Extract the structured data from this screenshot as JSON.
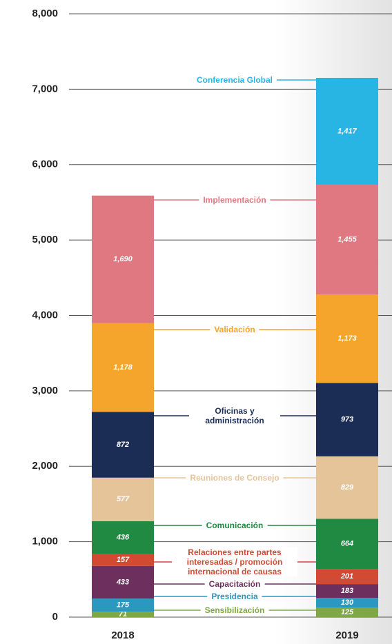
{
  "chart_data": {
    "type": "stacked_bar",
    "categories": [
      "2018",
      "2019"
    ],
    "series": [
      {
        "name": "Sensibilización",
        "color": "#7ea842",
        "values": [
          71,
          125
        ]
      },
      {
        "name": "Presidencia",
        "color": "#2a98c0",
        "values": [
          175,
          130
        ]
      },
      {
        "name": "Capacitación",
        "color": "#6d2f5d",
        "values": [
          433,
          183
        ]
      },
      {
        "name": "Relaciones entre partes interesadas / promoción internacional de causas",
        "color": "#d24a32",
        "values": [
          157,
          201
        ]
      },
      {
        "name": "Comunicación",
        "color": "#208a42",
        "values": [
          436,
          664
        ]
      },
      {
        "name": "Reuniones de Consejo",
        "color": "#e6c49a",
        "values": [
          577,
          829
        ]
      },
      {
        "name": "Oficinas y administración",
        "color": "#1c2d55",
        "values": [
          872,
          973
        ],
        "value_labels": [
          "872",
          "973"
        ]
      },
      {
        "name": "Validación",
        "color": "#f5a42c",
        "values": [
          1178,
          1173
        ],
        "value_labels": [
          "1,178",
          "1,173"
        ]
      },
      {
        "name": "Implementación",
        "color": "#e07881",
        "values": [
          1690,
          1455
        ],
        "value_labels": [
          "1,690",
          "1,455"
        ]
      },
      {
        "name": "Conferencia Global",
        "color": "#29b5e3",
        "values": [
          null,
          1417
        ],
        "value_labels": [
          null,
          "1,417"
        ]
      }
    ],
    "ylim": [
      0,
      8000
    ],
    "yticks": [
      0,
      {
        "value": 1000,
        "label": "1,000"
      },
      {
        "value": 2000,
        "label": "2,000"
      },
      {
        "value": 3000,
        "label": "3,000"
      },
      {
        "value": 4000,
        "label": "4,000"
      },
      {
        "value": 5000,
        "label": "5,000"
      },
      {
        "value": 6000,
        "label": "6,000"
      },
      {
        "value": 7000,
        "label": "7,000"
      },
      {
        "value": 8000,
        "label": "8,000"
      }
    ],
    "grid": true
  }
}
